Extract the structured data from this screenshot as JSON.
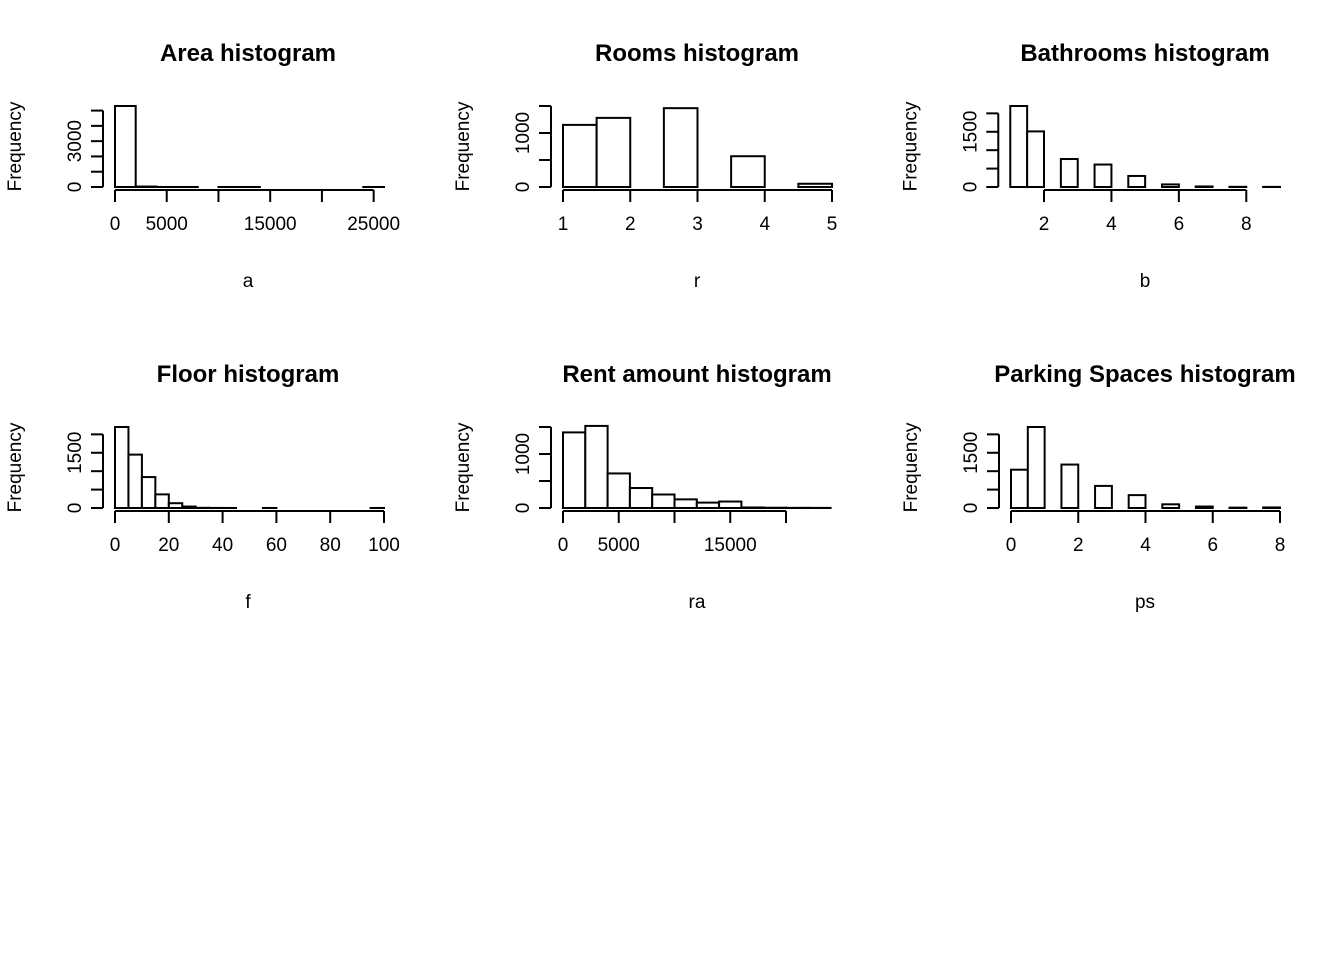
{
  "chart_data": [
    {
      "type": "histogram",
      "title": "Area histogram",
      "xlabel": "a",
      "ylabel": "Frequency",
      "bins": [
        [
          0,
          2000
        ],
        [
          2000,
          4000
        ],
        [
          4000,
          6000
        ],
        [
          6000,
          8000
        ],
        [
          8000,
          10000
        ],
        [
          10000,
          12000
        ],
        [
          12000,
          14000
        ],
        [
          14000,
          16000
        ],
        [
          16000,
          18000
        ],
        [
          18000,
          20000
        ],
        [
          20000,
          22000
        ],
        [
          22000,
          24000
        ],
        [
          24000,
          26000
        ]
      ],
      "values": [
        5300,
        30,
        2,
        1,
        0,
        1,
        1,
        0,
        0,
        0,
        0,
        0,
        1
      ],
      "xlim": [
        0,
        26000
      ],
      "ylim": [
        0,
        5300
      ],
      "x_ticks": [
        0,
        5000,
        10000,
        15000,
        20000,
        25000
      ],
      "x_tick_labels": [
        "0",
        "5000",
        "",
        "15000",
        "",
        "25000"
      ],
      "y_ticks": [
        0,
        1000,
        2000,
        3000,
        4000,
        5000
      ],
      "y_tick_labels": [
        "0",
        "",
        "",
        "3000",
        "",
        ""
      ]
    },
    {
      "type": "histogram",
      "title": "Rooms histogram",
      "xlabel": "r",
      "ylabel": "Frequency",
      "bins": [
        [
          1,
          1.5
        ],
        [
          1.5,
          2
        ],
        [
          2,
          2.5
        ],
        [
          2.5,
          3
        ],
        [
          3,
          3.5
        ],
        [
          3.5,
          4
        ],
        [
          4,
          4.5
        ],
        [
          4.5,
          5
        ]
      ],
      "values": [
        1150,
        1280,
        0,
        1460,
        0,
        570,
        0,
        60
      ],
      "xlim": [
        1,
        5
      ],
      "ylim": [
        0,
        1500
      ],
      "x_ticks": [
        1,
        2,
        3,
        4,
        5
      ],
      "x_tick_labels": [
        "1",
        "2",
        "3",
        "4",
        "5"
      ],
      "y_ticks": [
        0,
        500,
        1000,
        1500
      ],
      "y_tick_labels": [
        "0",
        "",
        "1000",
        ""
      ]
    },
    {
      "type": "histogram",
      "title": "Bathrooms histogram",
      "xlabel": "b",
      "ylabel": "Frequency",
      "bins": [
        [
          1,
          1.5
        ],
        [
          1.5,
          2
        ],
        [
          2,
          2.5
        ],
        [
          2.5,
          3
        ],
        [
          3,
          3.5
        ],
        [
          3.5,
          4
        ],
        [
          4,
          4.5
        ],
        [
          4.5,
          5
        ],
        [
          5,
          5.5
        ],
        [
          5.5,
          6
        ],
        [
          6,
          6.5
        ],
        [
          6.5,
          7
        ],
        [
          7,
          7.5
        ],
        [
          7.5,
          8
        ],
        [
          8,
          8.5
        ],
        [
          8.5,
          9
        ]
      ],
      "values": [
        2200,
        1510,
        0,
        760,
        0,
        610,
        0,
        300,
        0,
        70,
        0,
        15,
        0,
        5,
        0,
        3
      ],
      "xlim": [
        1,
        9
      ],
      "ylim": [
        0,
        2200
      ],
      "x_ticks": [
        2,
        4,
        6,
        8
      ],
      "x_tick_labels": [
        "2",
        "4",
        "6",
        "8"
      ],
      "y_ticks": [
        0,
        500,
        1000,
        1500,
        2000
      ],
      "y_tick_labels": [
        "0",
        "",
        "",
        "1500",
        ""
      ]
    },
    {
      "type": "histogram",
      "title": "Floor histogram",
      "xlabel": "f",
      "ylabel": "Frequency",
      "bins": [
        [
          0,
          5
        ],
        [
          5,
          10
        ],
        [
          10,
          15
        ],
        [
          15,
          20
        ],
        [
          20,
          25
        ],
        [
          25,
          30
        ],
        [
          30,
          35
        ],
        [
          35,
          40
        ],
        [
          40,
          45
        ],
        [
          45,
          50
        ],
        [
          50,
          55
        ],
        [
          55,
          60
        ],
        [
          60,
          65
        ],
        [
          65,
          70
        ],
        [
          70,
          75
        ],
        [
          75,
          80
        ],
        [
          80,
          85
        ],
        [
          85,
          90
        ],
        [
          90,
          95
        ],
        [
          95,
          100
        ]
      ],
      "values": [
        2200,
        1450,
        840,
        370,
        130,
        40,
        5,
        2,
        1,
        0,
        0,
        1,
        0,
        0,
        0,
        0,
        0,
        0,
        0,
        1
      ],
      "xlim": [
        0,
        100
      ],
      "ylim": [
        0,
        2200
      ],
      "x_ticks": [
        0,
        20,
        40,
        60,
        80,
        100
      ],
      "x_tick_labels": [
        "0",
        "20",
        "40",
        "60",
        "80",
        "100"
      ],
      "y_ticks": [
        0,
        500,
        1000,
        1500,
        2000
      ],
      "y_tick_labels": [
        "0",
        "",
        "",
        "1500",
        ""
      ]
    },
    {
      "type": "histogram",
      "title": "Rent amount histogram",
      "xlabel": "ra",
      "ylabel": "Frequency",
      "bins": [
        [
          0,
          2000
        ],
        [
          2000,
          4000
        ],
        [
          4000,
          6000
        ],
        [
          6000,
          8000
        ],
        [
          8000,
          10000
        ],
        [
          10000,
          12000
        ],
        [
          12000,
          14000
        ],
        [
          14000,
          16000
        ],
        [
          16000,
          18000
        ],
        [
          18000,
          20000
        ],
        [
          20000,
          22000
        ],
        [
          22000,
          24000
        ]
      ],
      "values": [
        1400,
        1520,
        640,
        370,
        250,
        160,
        100,
        120,
        10,
        5,
        3,
        2
      ],
      "xlim": [
        0,
        24000
      ],
      "ylim": [
        0,
        1500
      ],
      "x_ticks": [
        0,
        5000,
        10000,
        15000,
        20000
      ],
      "x_tick_labels": [
        "0",
        "5000",
        "",
        "15000",
        ""
      ],
      "y_ticks": [
        0,
        500,
        1000,
        1500
      ],
      "y_tick_labels": [
        "0",
        "",
        "1000",
        ""
      ]
    },
    {
      "type": "histogram",
      "title": "Parking Spaces histogram",
      "xlabel": "ps",
      "ylabel": "Frequency",
      "bins": [
        [
          0,
          0.5
        ],
        [
          0.5,
          1
        ],
        [
          1,
          1.5
        ],
        [
          1.5,
          2
        ],
        [
          2,
          2.5
        ],
        [
          2.5,
          3
        ],
        [
          3,
          3.5
        ],
        [
          3.5,
          4
        ],
        [
          4,
          4.5
        ],
        [
          4.5,
          5
        ],
        [
          5,
          5.5
        ],
        [
          5.5,
          6
        ],
        [
          6,
          6.5
        ],
        [
          6.5,
          7
        ],
        [
          7,
          7.5
        ],
        [
          7.5,
          8
        ]
      ],
      "values": [
        1040,
        2200,
        0,
        1180,
        0,
        600,
        0,
        350,
        0,
        100,
        0,
        40,
        0,
        10,
        0,
        15
      ],
      "xlim": [
        0,
        8
      ],
      "ylim": [
        0,
        2200
      ],
      "x_ticks": [
        0,
        2,
        4,
        6,
        8
      ],
      "x_tick_labels": [
        "0",
        "2",
        "4",
        "6",
        "8"
      ],
      "y_ticks": [
        0,
        500,
        1000,
        1500,
        2000
      ],
      "y_tick_labels": [
        "0",
        "",
        "",
        "1500",
        ""
      ]
    }
  ]
}
